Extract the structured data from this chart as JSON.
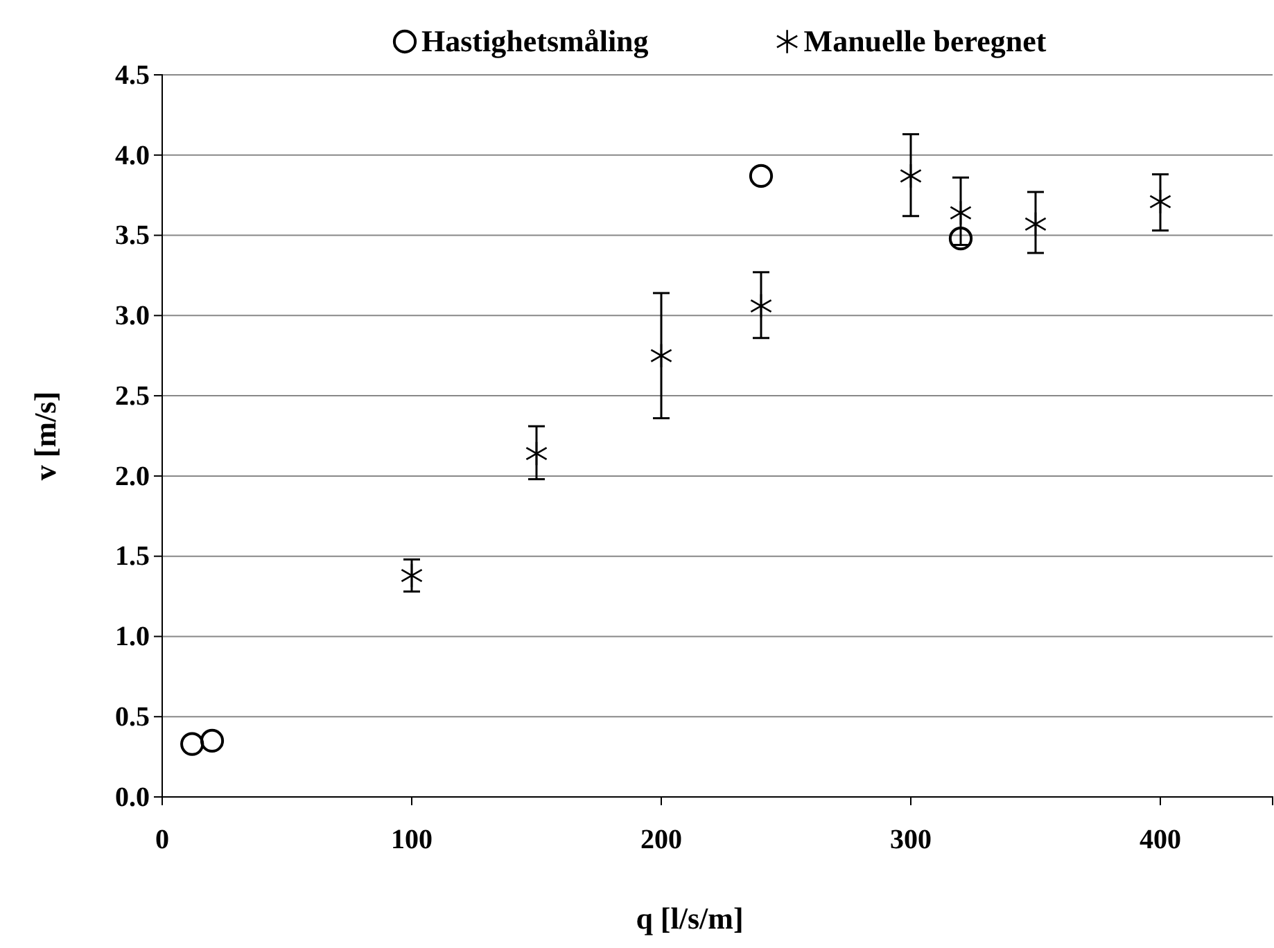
{
  "chart_data": {
    "type": "scatter",
    "xlabel": "q [l/s/m]",
    "ylabel": "v [m/s]",
    "xlim": [
      0,
      445
    ],
    "ylim": [
      0,
      4.5
    ],
    "xticks": [
      0,
      100,
      200,
      300,
      400
    ],
    "yticks": [
      {
        "value": 0,
        "label": "0.0"
      },
      {
        "value": 0.5,
        "label": "0.5"
      },
      {
        "value": 1,
        "label": "1.0"
      },
      {
        "value": 1.5,
        "label": "1.5"
      },
      {
        "value": 2,
        "label": "2.0"
      },
      {
        "value": 2.5,
        "label": "2.5"
      },
      {
        "value": 3,
        "label": "3.0"
      },
      {
        "value": 3.5,
        "label": "3.5"
      },
      {
        "value": 4,
        "label": "4.0"
      },
      {
        "value": 4.5,
        "label": "4.5"
      }
    ],
    "grid": "y",
    "legend": "top",
    "series": [
      {
        "name": "Hastighetsmåling",
        "color": "#000000",
        "marker": "circle",
        "x": [
          12,
          20,
          240,
          320
        ],
        "values": [
          0.33,
          0.35,
          3.87,
          3.48
        ]
      },
      {
        "name": "Manuelle beregnet",
        "color": "#000000",
        "marker": "cross",
        "x": [
          100,
          150,
          200,
          240,
          300,
          320,
          350,
          400
        ],
        "values": [
          1.38,
          2.14,
          2.75,
          3.06,
          3.87,
          3.64,
          3.57,
          3.71
        ],
        "errors": [
          [
            1.28,
            1.48
          ],
          [
            1.98,
            2.31
          ],
          [
            2.36,
            3.14
          ],
          [
            2.86,
            3.27
          ],
          [
            3.62,
            4.13
          ],
          [
            3.44,
            3.86
          ],
          [
            3.39,
            3.77
          ],
          [
            3.53,
            3.88
          ]
        ]
      }
    ]
  }
}
